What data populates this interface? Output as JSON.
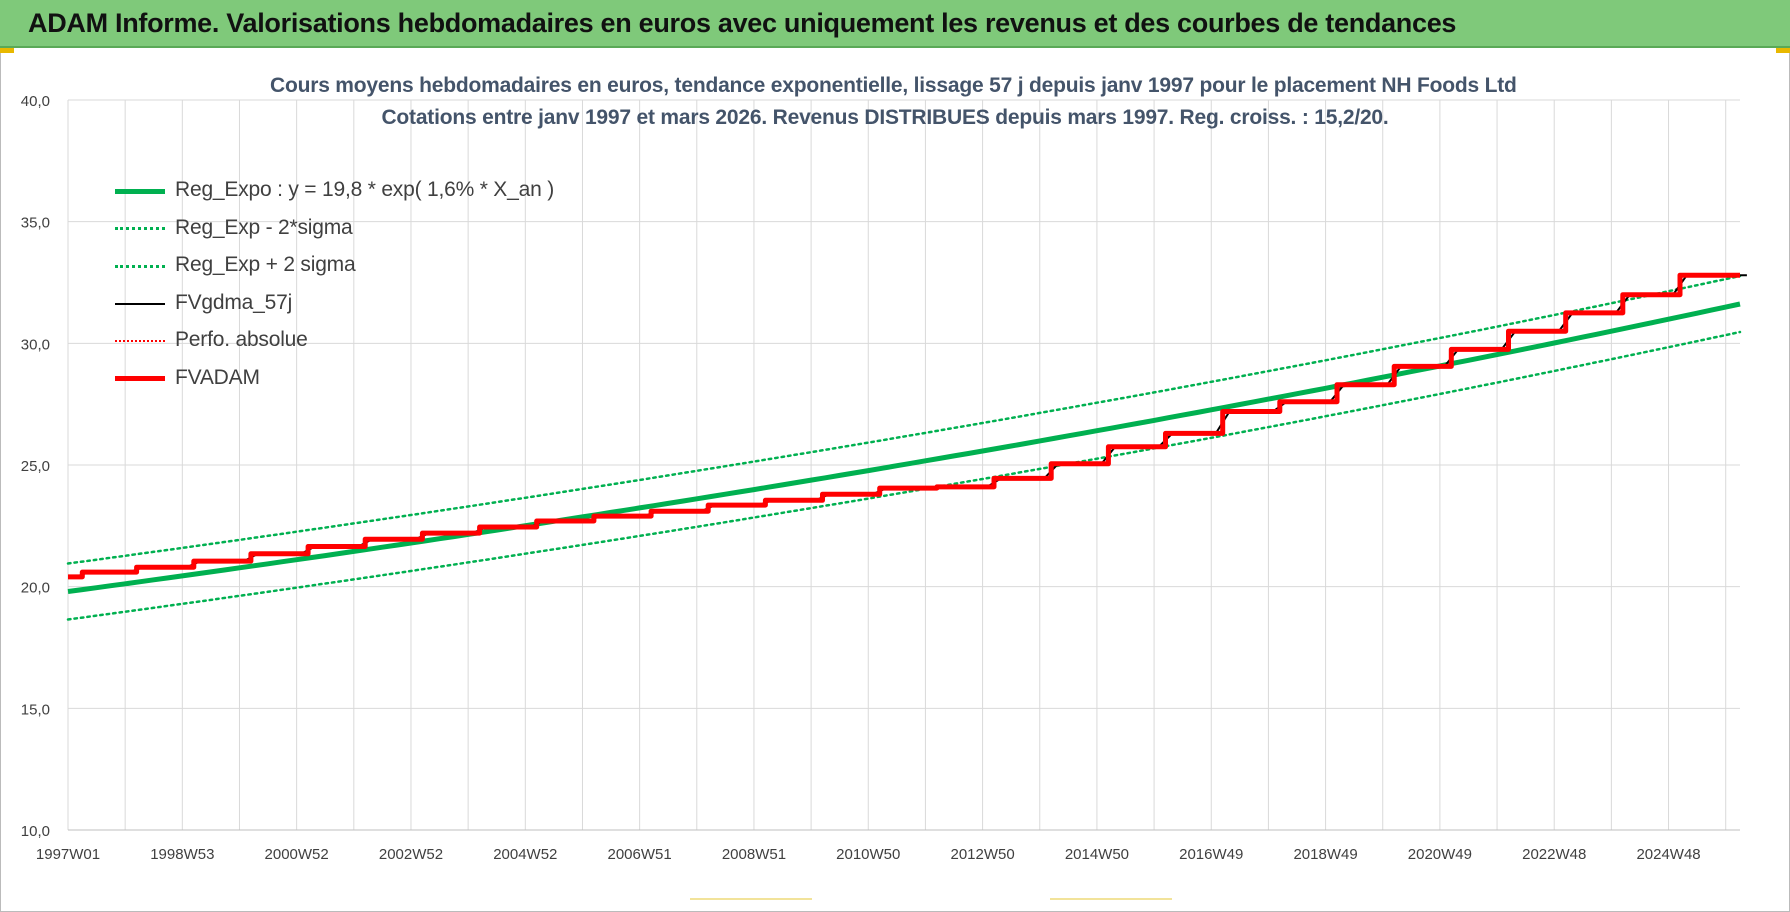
{
  "banner": {
    "title": "ADAM Informe. Valorisations hebdomadaires en euros avec uniquement les revenus et des courbes de tendances"
  },
  "colors": {
    "banner_bg": "#7fc97a",
    "trend": "#00b050",
    "fvgdma": "#000000",
    "fvadam": "#ff0000",
    "perfo": "#ff0000",
    "title_text": "#44546a"
  },
  "chart_data": {
    "type": "line",
    "title": "Cours moyens hebdomadaires en euros, tendance exponentielle, lissage 57 j depuis janv 1997 pour le placement NH Foods Ltd",
    "subtitle": "Cotations entre janv 1997 et mars 2026. Revenus DISTRIBUES depuis mars 1997. Reg. croiss. : 15,2/20.",
    "xlabel": "",
    "ylabel": "",
    "ylim": [
      10,
      40
    ],
    "yticks": [
      "10,0",
      "15,0",
      "20,0",
      "25,0",
      "30,0",
      "35,0",
      "40,0"
    ],
    "xticks": [
      "1997W01",
      "1998W53",
      "2000W52",
      "2002W52",
      "2004W52",
      "2006W51",
      "2008W51",
      "2010W50",
      "2012W50",
      "2014W50",
      "2016W49",
      "2018W49",
      "2020W49",
      "2022W48",
      "2024W48"
    ],
    "xlim_years": [
      1997.0,
      2026.25
    ],
    "grid": true,
    "legend_position": "top-left",
    "legend": [
      {
        "name": "Reg_Expo : y = 19,8 * exp( 1,6% *  X_an )",
        "color": "#00b050",
        "style": "solid-thick"
      },
      {
        "name": "Reg_Exp - 2*sigma",
        "color": "#00b050",
        "style": "dotted"
      },
      {
        "name": "Reg_Exp + 2 sigma",
        "color": "#00b050",
        "style": "dotted"
      },
      {
        "name": "FVgdma_57j",
        "color": "#000000",
        "style": "solid"
      },
      {
        "name": "Perfo. absolue",
        "color": "#ff0000",
        "style": "dotted"
      },
      {
        "name": "FVADAM",
        "color": "#ff0000",
        "style": "solid-thick"
      }
    ],
    "trend": {
      "a": 19.8,
      "rate": 0.016,
      "lower_offset": -1.15,
      "upper_offset": 1.15
    },
    "fvadam_steps": [
      {
        "year": 1997.0,
        "value": 20.4
      },
      {
        "year": 1997.25,
        "value": 20.6
      },
      {
        "year": 1998.2,
        "value": 20.8
      },
      {
        "year": 1999.2,
        "value": 21.05
      },
      {
        "year": 2000.2,
        "value": 21.35
      },
      {
        "year": 2001.2,
        "value": 21.65
      },
      {
        "year": 2002.2,
        "value": 21.95
      },
      {
        "year": 2003.2,
        "value": 22.2
      },
      {
        "year": 2004.2,
        "value": 22.45
      },
      {
        "year": 2005.2,
        "value": 22.7
      },
      {
        "year": 2006.2,
        "value": 22.9
      },
      {
        "year": 2007.2,
        "value": 23.1
      },
      {
        "year": 2008.2,
        "value": 23.35
      },
      {
        "year": 2009.2,
        "value": 23.55
      },
      {
        "year": 2010.2,
        "value": 23.8
      },
      {
        "year": 2011.2,
        "value": 24.05
      },
      {
        "year": 2012.2,
        "value": 24.1
      },
      {
        "year": 2013.2,
        "value": 24.45
      },
      {
        "year": 2014.2,
        "value": 25.05
      },
      {
        "year": 2015.2,
        "value": 25.75
      },
      {
        "year": 2016.2,
        "value": 26.3
      },
      {
        "year": 2017.2,
        "value": 27.2
      },
      {
        "year": 2018.2,
        "value": 27.6
      },
      {
        "year": 2019.2,
        "value": 28.3
      },
      {
        "year": 2020.2,
        "value": 29.05
      },
      {
        "year": 2021.2,
        "value": 29.75
      },
      {
        "year": 2022.2,
        "value": 30.5
      },
      {
        "year": 2023.2,
        "value": 31.25
      },
      {
        "year": 2024.2,
        "value": 32.0
      },
      {
        "year": 2025.2,
        "value": 32.8
      },
      {
        "year": 2026.25,
        "value": 32.8
      }
    ]
  }
}
